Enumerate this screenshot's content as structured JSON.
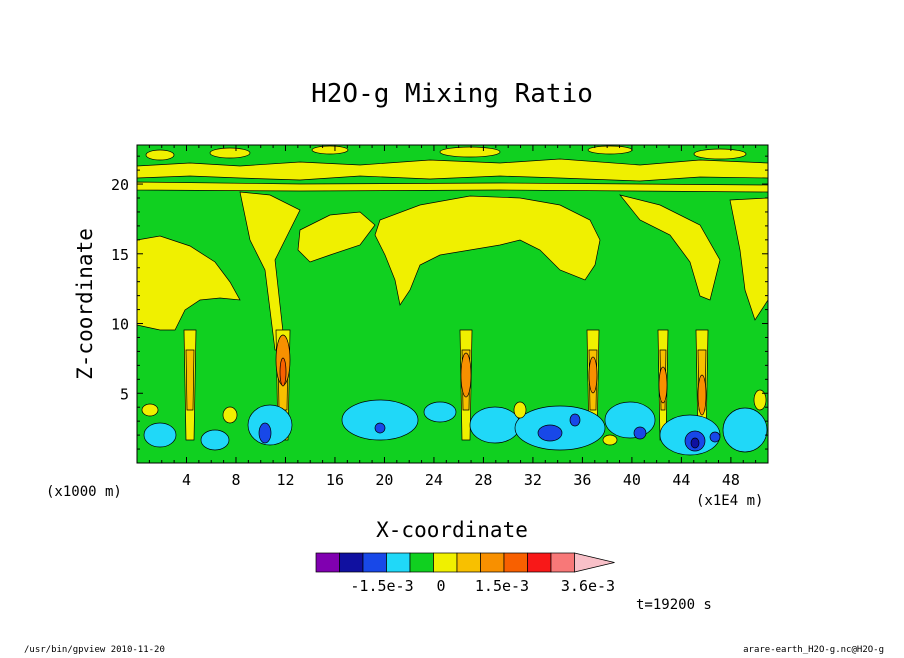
{
  "chart_data": {
    "type": "heatmap",
    "title": "H2O-g Mixing Ratio",
    "xlabel": "X-coordinate",
    "ylabel": "Z-coordinate",
    "x_unit_left": "(x1000 m)",
    "x_unit_right": "(x1E4 m)",
    "x_ticks": [
      "4",
      "8",
      "12",
      "16",
      "20",
      "24",
      "28",
      "32",
      "36",
      "40",
      "44",
      "48"
    ],
    "y_ticks": [
      "5",
      "10",
      "15",
      "20"
    ],
    "xlim": [
      0,
      51
    ],
    "ylim": [
      0,
      22.8
    ],
    "colorbar": {
      "labels": [
        "-1.5e-3",
        "0",
        "1.5e-3",
        "3.6e-3"
      ],
      "colors": [
        "#8000b0",
        "#1010a0",
        "#1848e8",
        "#20d8f8",
        "#10d020",
        "#f0f000",
        "#f8c000",
        "#f89000",
        "#f86000",
        "#f81818",
        "#f87878",
        "#f8c0c8"
      ]
    },
    "time_label": "t=19200 s",
    "footer_left": "/usr/bin/gpview  2010-11-20",
    "footer_right": "arare-earth_H2O-g.nc@H2O-g",
    "field_colors": {
      "background": "#10d020",
      "light_positive": "#f0f000",
      "negative": "#20d8f8",
      "strong_negative": "#1848e8",
      "deep_negative": "#1010a0",
      "moderate_positive": "#f8c000",
      "strong_positive": "#f89000",
      "peak": "#f86000"
    }
  }
}
